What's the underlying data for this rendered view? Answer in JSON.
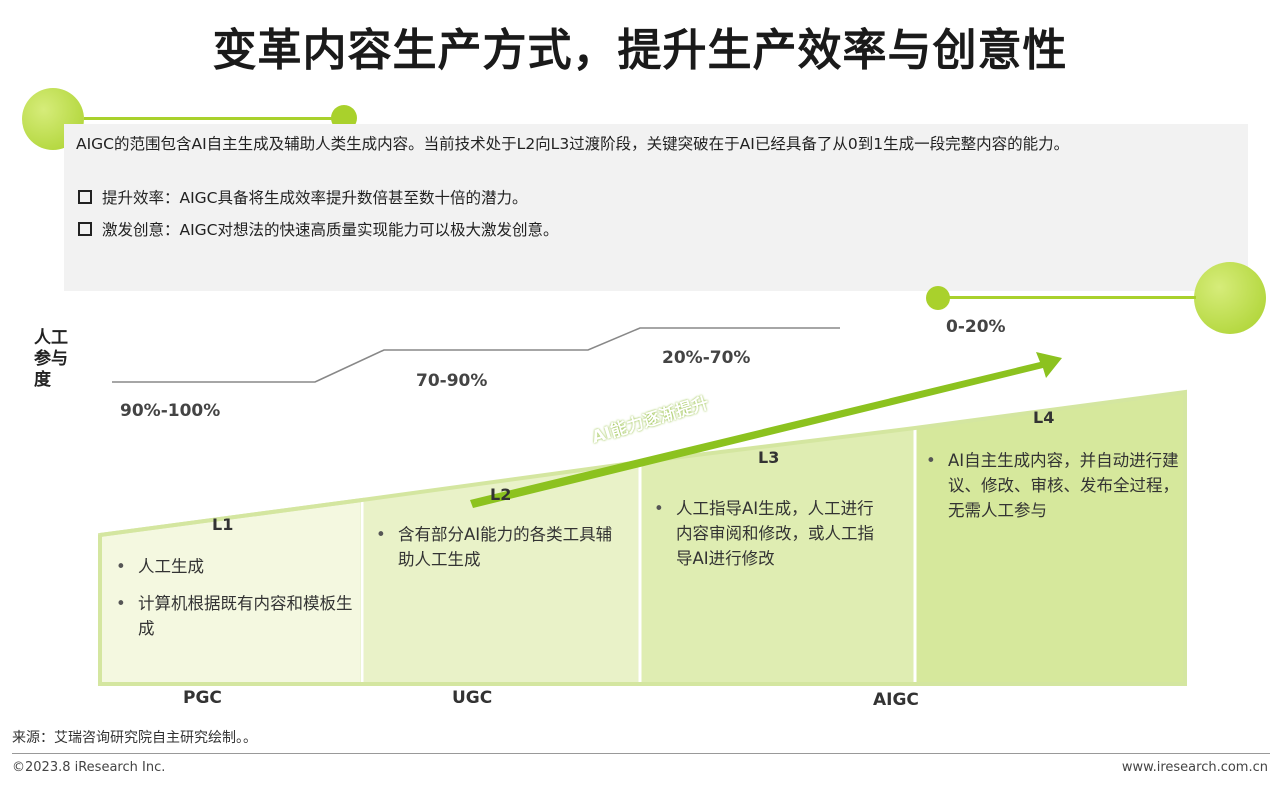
{
  "title": "变革内容生产方式，提升生产效率与创意性",
  "intro": "AIGC的范围包含AI自主生成及辅助人类生成内容。当前技术处于L2向L3过渡阶段，关键突破在于AI已经具备了从0到1生成一段完整内容的能力。",
  "bullets": [
    "提升效率：AIGC具备将生成效率提升数倍甚至数十倍的潜力。",
    "激发创意：AIGC对想法的快速高质量实现能力可以极大激发创意。"
  ],
  "y_axis_label": "人工参与度",
  "participation": [
    "90%-100%",
    "70-90%",
    "20%-70%",
    "0-20%"
  ],
  "arrow_label": "AI能力逐渐提升",
  "levels": [
    {
      "label": "L1",
      "items": [
        "人工生成",
        "计算机根据既有内容和模板生成"
      ]
    },
    {
      "label": "L2",
      "items": [
        "含有部分AI能力的各类工具辅助人工生成"
      ]
    },
    {
      "label": "L3",
      "items": [
        "人工指导AI生成，人工进行内容审阅和修改，或人工指导AI进行修改"
      ]
    },
    {
      "label": "L4",
      "items": [
        "AI自主生成内容，并自动进行建议、修改、审核、发布全过程，无需人工参与"
      ]
    }
  ],
  "stages": [
    "PGC",
    "UGC",
    "AIGC"
  ],
  "colors": {
    "accent": "#a9d12c",
    "arrow": "#8cc21f",
    "l1": "#f4f8e0",
    "l2": "#e9f2c8",
    "l3": "#dfedb2",
    "l4": "#d6e89c"
  },
  "source": "来源：艾瑞咨询研究院自主研究绘制。。",
  "copyright": "©2023.8 iResearch Inc.",
  "website": "www.iresearch.com.cn"
}
